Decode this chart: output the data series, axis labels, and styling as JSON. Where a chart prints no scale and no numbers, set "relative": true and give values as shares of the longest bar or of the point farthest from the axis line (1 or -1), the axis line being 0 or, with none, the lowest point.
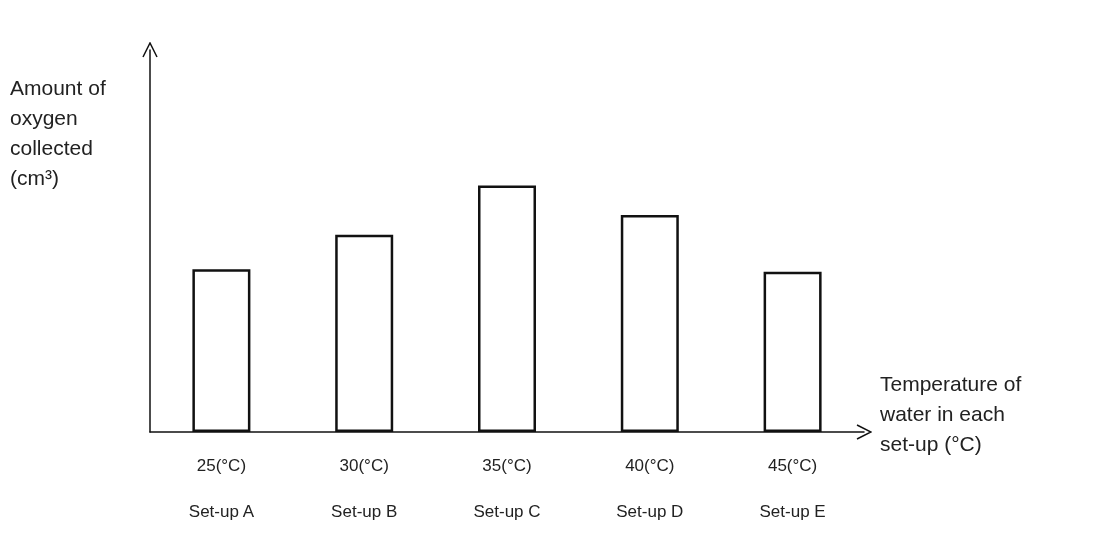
{
  "chart_data": {
    "type": "bar",
    "relative": true,
    "categories": [
      "25(°C)\nSet-up A",
      "30(°C)\nSet-up B",
      "35(°C)\nSet-up C",
      "40(°C)\nSet-up D",
      "45(°C)\nSet-up E"
    ],
    "values": [
      0.66,
      0.8,
      1,
      0.88,
      0.65
    ],
    "color": "#ffffff",
    "ylabel": "Amount of oxygen collected (cm³)",
    "xlabel": "Temperature of water in each set-up (°C)",
    "grid": false
  }
}
